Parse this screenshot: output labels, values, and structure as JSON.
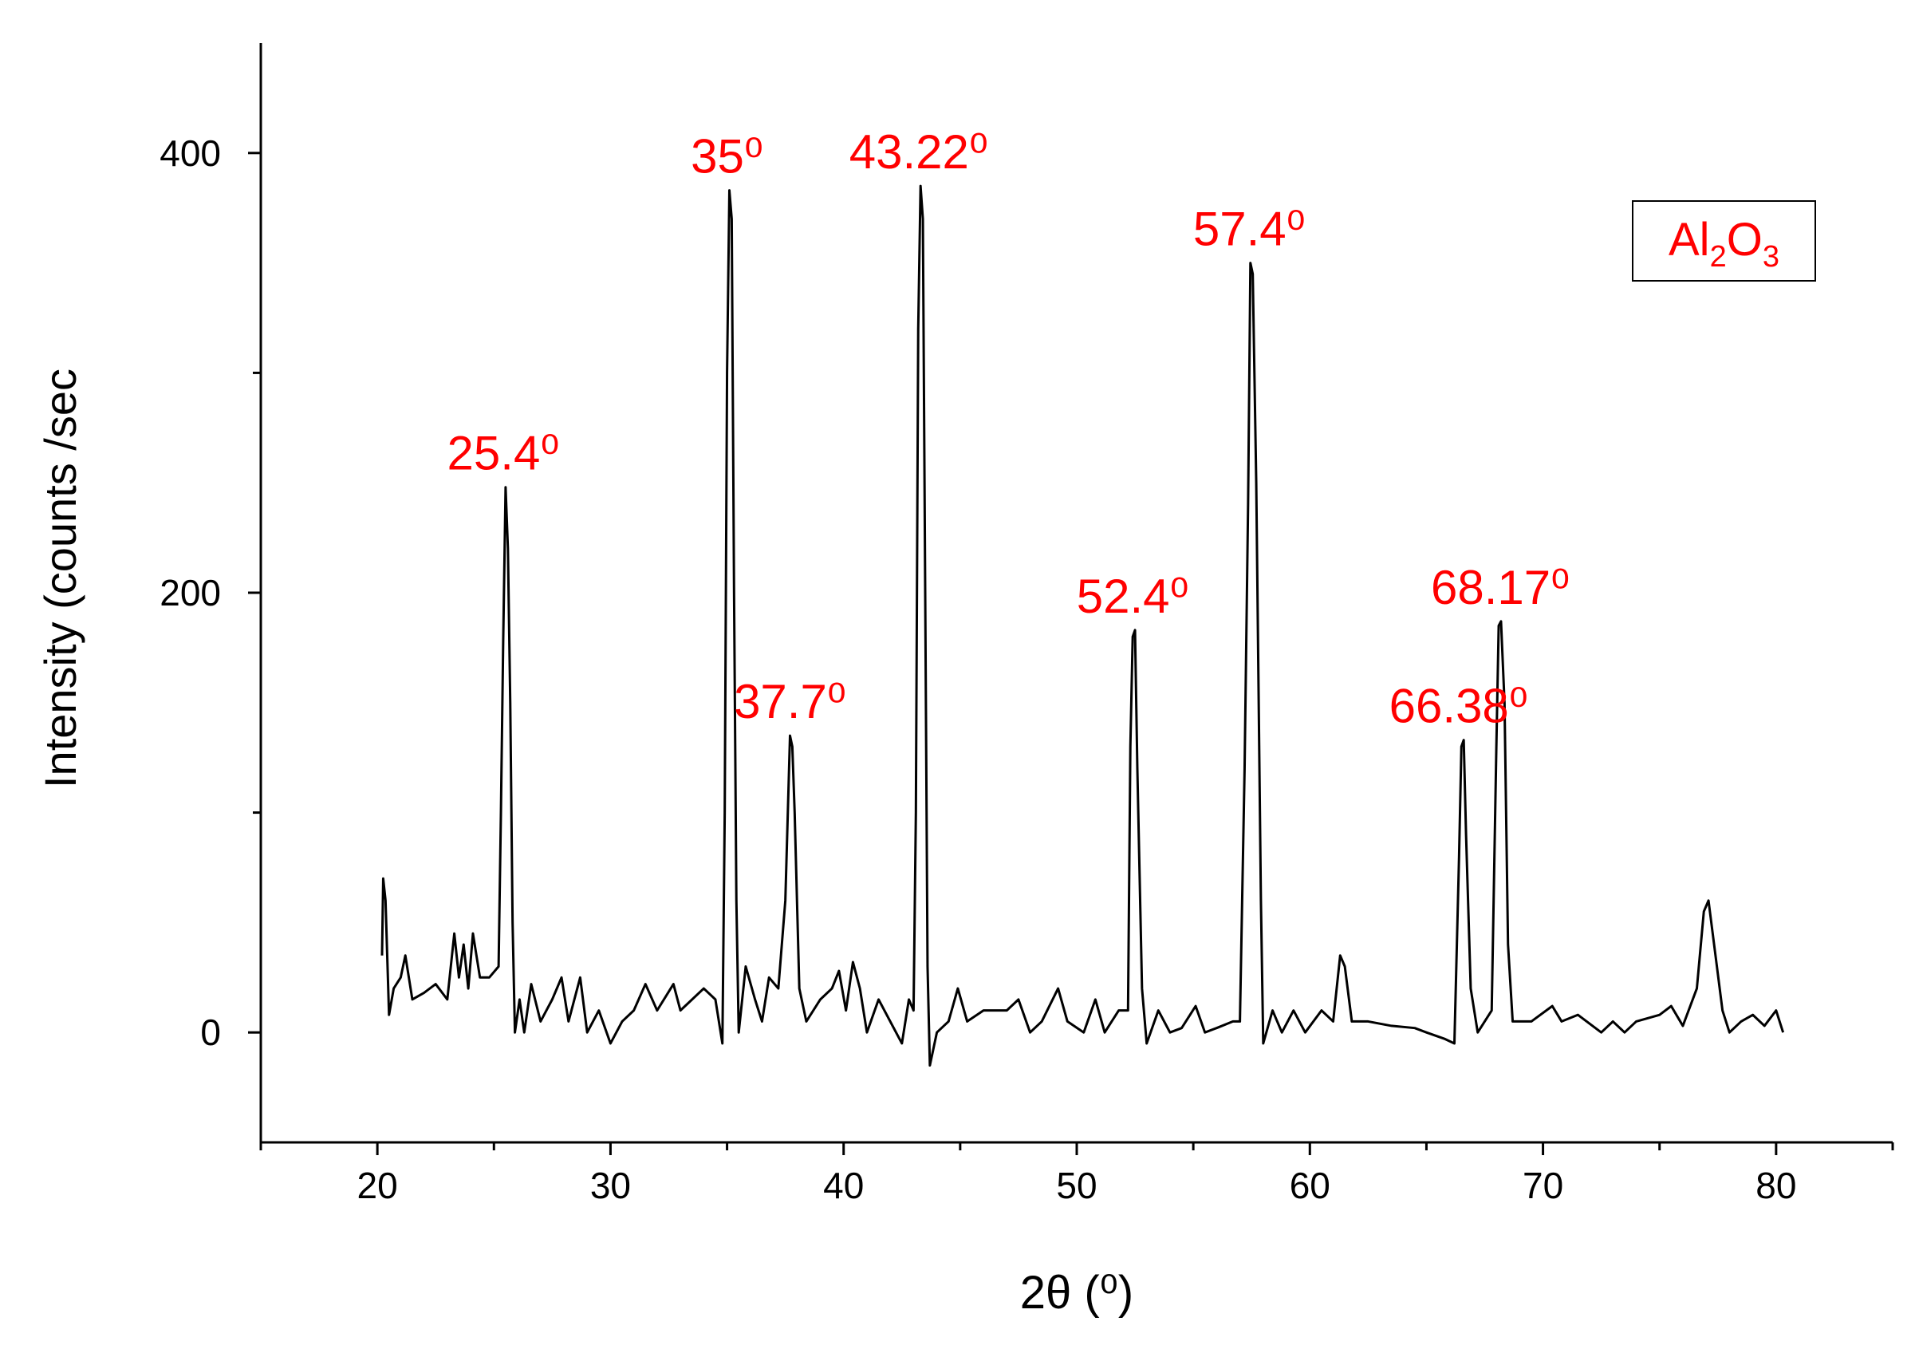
{
  "chart_data": {
    "type": "line",
    "xlabel": "2θ (⁰)",
    "ylabel": "Intensity (counts /sec",
    "xlim": [
      15,
      85
    ],
    "ylim": [
      -50,
      450
    ],
    "xticks": [
      20,
      30,
      40,
      50,
      60,
      70,
      80
    ],
    "x_minor_ticks": [
      15,
      25,
      35,
      45,
      55,
      65,
      75,
      85
    ],
    "yticks": [
      0,
      200,
      400
    ],
    "y_minor_ticks": [
      100,
      300
    ],
    "grid": false,
    "legend": "upper right",
    "annotation_color": "#ff0000",
    "annotations": [
      {
        "text": "25.4⁰",
        "x": 25.4
      },
      {
        "text": "35⁰",
        "x": 35
      },
      {
        "text": "37.7⁰",
        "x": 37.7
      },
      {
        "text": "43.22⁰",
        "x": 43.22
      },
      {
        "text": "52.4⁰",
        "x": 52.4
      },
      {
        "text": "57.4⁰",
        "x": 57.4
      },
      {
        "text": "66.38⁰",
        "x": 66.38
      },
      {
        "text": "68.17⁰",
        "x": 68.17
      }
    ],
    "x": [
      20.2,
      20.25,
      20.35,
      20.5,
      20.7,
      21.0,
      21.2,
      21.5,
      22.0,
      22.5,
      23.0,
      23.3,
      23.5,
      23.7,
      23.9,
      24.1,
      24.4,
      24.8,
      25.2,
      25.3,
      25.4,
      25.5,
      25.6,
      25.7,
      25.8,
      25.9,
      26.1,
      26.3,
      26.6,
      27.0,
      27.5,
      27.9,
      28.2,
      28.7,
      29.0,
      29.5,
      30.0,
      30.5,
      31.0,
      31.5,
      32.0,
      32.7,
      33.0,
      33.5,
      34.0,
      34.5,
      34.8,
      34.9,
      35.0,
      35.1,
      35.2,
      35.3,
      35.4,
      35.5,
      35.8,
      36.2,
      36.5,
      36.8,
      37.2,
      37.5,
      37.7,
      37.8,
      37.9,
      38.1,
      38.4,
      39.0,
      39.5,
      39.8,
      40.1,
      40.4,
      40.7,
      41.0,
      41.5,
      42.0,
      42.5,
      42.8,
      43.0,
      43.1,
      43.2,
      43.3,
      43.4,
      43.5,
      43.6,
      43.7,
      44.0,
      44.5,
      44.9,
      45.3,
      46.0,
      47.0,
      47.5,
      48.0,
      48.5,
      49.2,
      49.6,
      50.3,
      50.8,
      51.2,
      51.8,
      52.2,
      52.3,
      52.4,
      52.5,
      52.6,
      52.8,
      53.0,
      53.5,
      54.0,
      54.5,
      55.1,
      55.5,
      56.0,
      56.7,
      57.0,
      57.2,
      57.35,
      57.45,
      57.55,
      57.7,
      57.9,
      58.0,
      58.4,
      58.8,
      59.3,
      59.8,
      60.5,
      61.0,
      61.3,
      61.5,
      61.8,
      62.5,
      63.5,
      64.5,
      65.0,
      65.8,
      66.2,
      66.4,
      66.5,
      66.6,
      66.7,
      66.9,
      67.2,
      67.8,
      68.0,
      68.1,
      68.2,
      68.35,
      68.5,
      68.7,
      69.5,
      70.4,
      70.8,
      71.5,
      72.5,
      73.0,
      73.5,
      74.0,
      75.0,
      75.5,
      76.0,
      76.6,
      76.9,
      77.1,
      77.4,
      77.7,
      78.0,
      78.5,
      79.0,
      79.5,
      80.0,
      80.3
    ],
    "series": [
      {
        "name": "Al2O3",
        "color": "#000000",
        "legend_color": "#ff0000",
        "values": [
          35,
          70,
          60,
          8,
          20,
          25,
          35,
          15,
          18,
          22,
          15,
          45,
          25,
          40,
          20,
          45,
          25,
          25,
          30,
          100,
          180,
          248,
          220,
          150,
          50,
          0,
          15,
          0,
          22,
          5,
          15,
          25,
          5,
          25,
          0,
          10,
          -5,
          5,
          10,
          22,
          10,
          22,
          10,
          15,
          20,
          15,
          -5,
          100,
          300,
          383,
          370,
          200,
          60,
          0,
          30,
          15,
          5,
          25,
          20,
          60,
          135,
          130,
          100,
          20,
          5,
          15,
          20,
          28,
          10,
          32,
          20,
          0,
          15,
          5,
          -5,
          15,
          10,
          100,
          320,
          385,
          370,
          200,
          30,
          -15,
          0,
          5,
          20,
          5,
          10,
          10,
          15,
          0,
          5,
          20,
          5,
          0,
          15,
          0,
          10,
          10,
          130,
          180,
          183,
          120,
          20,
          -5,
          10,
          0,
          2,
          12,
          0,
          2,
          5,
          5,
          120,
          240,
          350,
          345,
          250,
          60,
          -5,
          10,
          0,
          10,
          0,
          10,
          5,
          35,
          30,
          5,
          5,
          3,
          2,
          0,
          -3,
          -5,
          80,
          130,
          133,
          90,
          20,
          0,
          10,
          130,
          185,
          187,
          150,
          40,
          5,
          5,
          12,
          5,
          8,
          0,
          5,
          0,
          5,
          8,
          12,
          3,
          20,
          55,
          60,
          35,
          10,
          0,
          5,
          8,
          3,
          10,
          0
        ]
      }
    ]
  }
}
